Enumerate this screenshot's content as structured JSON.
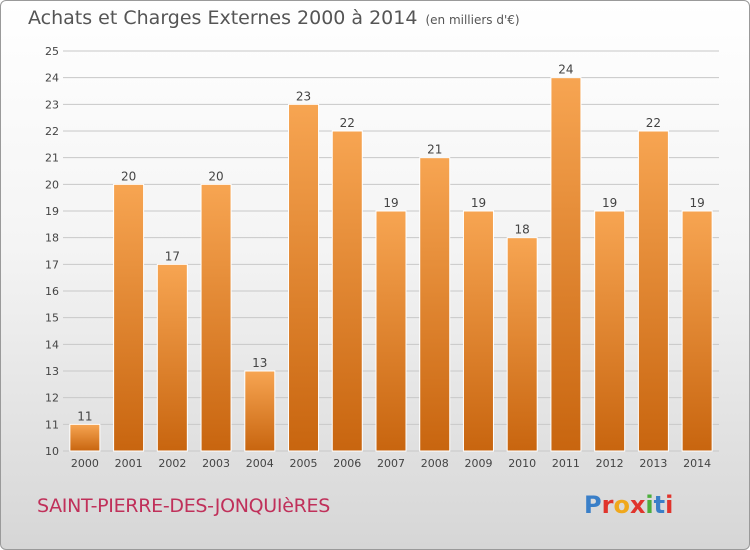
{
  "header": {
    "title": "Achats et Charges Externes 2000 à 2014",
    "unit": "(en milliers d'€)"
  },
  "footer": {
    "commune": "SAINT-PIERRE-DES-JONQUIèRES",
    "logo": "Proxiti",
    "logo_colors": [
      "#3a7fc8",
      "#e0342c",
      "#f0a81c",
      "#e0342c",
      "#4cae3c",
      "#3a7fc8",
      "#e0342c"
    ]
  },
  "colors": {
    "bar_top": "#f7a552",
    "bar_bottom": "#c8650f",
    "grid": "#c8c8c8",
    "axis_text": "#444444"
  },
  "chart_data": {
    "type": "bar",
    "categories": [
      "2000",
      "2001",
      "2002",
      "2003",
      "2004",
      "2005",
      "2006",
      "2007",
      "2008",
      "2009",
      "2010",
      "2011",
      "2012",
      "2013",
      "2014"
    ],
    "values": [
      11,
      20,
      17,
      20,
      13,
      23,
      22,
      19,
      21,
      19,
      18,
      24,
      19,
      22,
      19
    ],
    "title": "Achats et Charges Externes 2000 à 2014",
    "ylim": [
      10,
      25
    ],
    "yticks": [
      10,
      11,
      12,
      13,
      14,
      15,
      16,
      17,
      18,
      19,
      20,
      21,
      22,
      23,
      24,
      25
    ],
    "grid": true
  }
}
